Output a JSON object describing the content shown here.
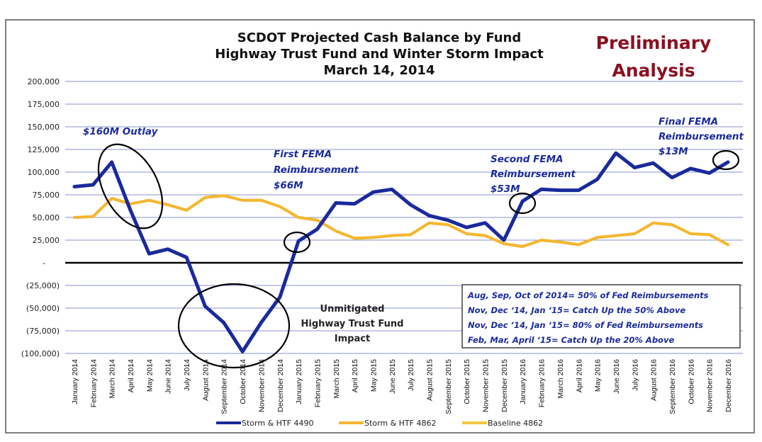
{
  "chart_data": {
    "type": "line",
    "title_lines": [
      "SCDOT Projected Cash Balance by Fund",
      "Highway Trust Fund and Winter Storm Impact",
      "March 14, 2014"
    ],
    "stamp_lines": [
      "Preliminary",
      "Analysis"
    ],
    "xlabel": "",
    "ylabel": "",
    "ylim": [
      -100000,
      200000
    ],
    "grid": true,
    "yticks": [
      200000,
      175000,
      150000,
      125000,
      100000,
      75000,
      50000,
      25000,
      0,
      -25000,
      -50000,
      -75000,
      -100000
    ],
    "ytick_labels": [
      "200,000",
      "175,000",
      "150,000",
      "125,000",
      "100,000",
      "75,000",
      "50,000",
      "25,000",
      "-",
      "(25,000)",
      "(50,000)",
      "(75,000)",
      "(100,000)"
    ],
    "categories": [
      "January 2014",
      "February 2014",
      "March 2014",
      "April 2014",
      "May 2014",
      "June 2014",
      "July 2014",
      "August 2014",
      "September 2014",
      "October 2014",
      "November 2014",
      "December 2014",
      "January 2015",
      "February 2015",
      "March 2015",
      "April 2015",
      "May 2015",
      "June 2015",
      "July 2015",
      "August 2015",
      "September 2015",
      "October 2015",
      "November 2015",
      "December 2015",
      "January 2016",
      "February 2016",
      "March 2016",
      "April 2016",
      "May 2016",
      "June 2016",
      "July 2016",
      "August 2016",
      "September 2016",
      "October 2016",
      "November 2016",
      "December 2016"
    ],
    "series": [
      {
        "name": "Storm & HTF 4490",
        "color": "#1a2a9c",
        "values": [
          84000,
          86000,
          111000,
          58000,
          10000,
          15000,
          6000,
          -48000,
          -66000,
          -98000,
          -66000,
          -38000,
          24000,
          37000,
          66000,
          65000,
          78000,
          81000,
          64000,
          52000,
          47000,
          39000,
          44000,
          25000,
          68000,
          81000,
          80000,
          80000,
          92000,
          121000,
          105000,
          110000,
          94000,
          104000,
          99000,
          111000
        ]
      },
      {
        "name": "Storm & HTF 4862",
        "color": "#f5b731",
        "values": [
          50000,
          51000,
          71000,
          65000,
          69000,
          64000,
          58000,
          72000,
          74000,
          69000,
          69000,
          62000,
          50000,
          47000,
          35000,
          27000,
          28000,
          30000,
          31000,
          44000,
          42000,
          32000,
          30000,
          21000,
          18000,
          25000,
          23000,
          20000,
          28000,
          30000,
          32000,
          44000,
          42000,
          32000,
          31000,
          20000
        ]
      },
      {
        "name": "Baseline 4862",
        "color": "#f5c542",
        "values": [
          50000,
          51000,
          71000,
          65000,
          69000,
          64000,
          58000,
          72000,
          74000,
          69000,
          69000,
          62000,
          50000,
          47000,
          35000,
          27000,
          28000,
          30000,
          31000,
          44000,
          42000,
          32000,
          30000,
          21000,
          18000,
          25000,
          23000,
          20000,
          28000,
          30000,
          32000,
          44000,
          42000,
          32000,
          31000,
          20000
        ]
      }
    ],
    "annotations": {
      "outlay": "$160M Outlay",
      "first_fema": [
        "First FEMA",
        "Reimbursement",
        "$66M"
      ],
      "second_fema": [
        "Second FEMA",
        "Reimbursement",
        "$53M"
      ],
      "final_fema": [
        "Final FEMA",
        "Reimbursement",
        "$13M"
      ],
      "impact": [
        "Unmitigated",
        "Highway Trust Fund",
        "Impact"
      ],
      "notes": [
        "Aug, Sep, Oct of 2014= 50% of Fed Reimbursements",
        "Nov, Dec ‘14, Jan ‘15= Catch Up the 50% Above",
        "Nov, Dec ’14, Jan ‘15= 80% of Fed Reimbursements",
        "Feb, Mar, April ‘15= Catch Up  the 20% Above"
      ]
    },
    "legend_position": "bottom"
  },
  "colors": {
    "gridline": "#8a93c8",
    "zero_line": "#000000",
    "circle": "#000000",
    "frame": "#555555"
  }
}
